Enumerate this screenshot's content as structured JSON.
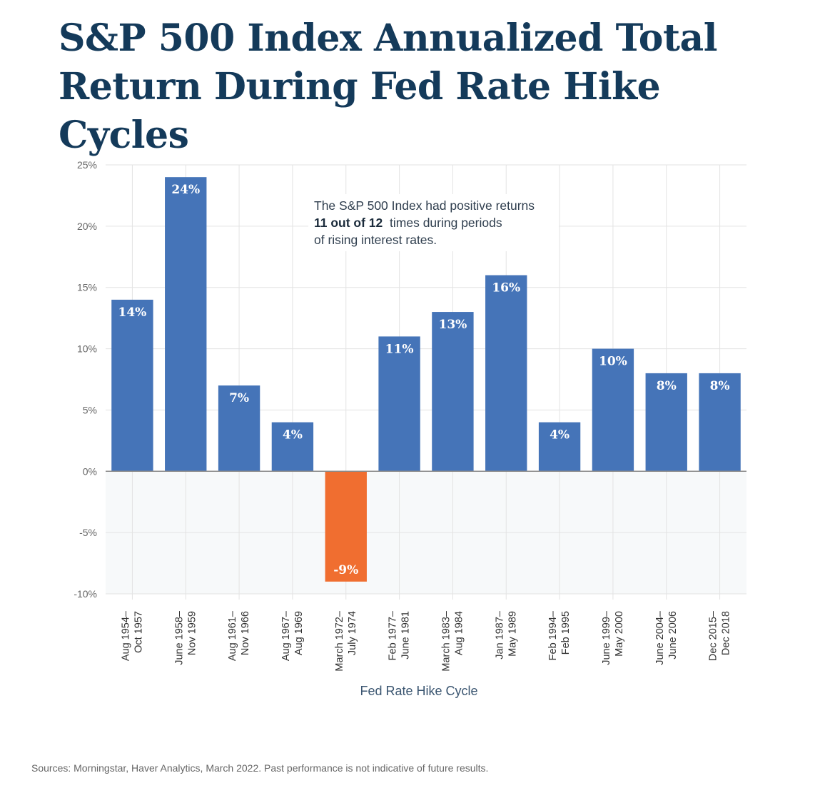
{
  "title_lines": [
    "S&P 500 Index Annualized Total",
    "Return During Fed Rate Hike Cycles"
  ],
  "annotation": {
    "line1": "The S&P 500 Index had positive returns",
    "line2_bold": "11 out of 12",
    "line2_rest": "times during periods",
    "line3": "of rising interest rates."
  },
  "source": "Sources: Morningstar, Haver Analytics, March 2022. Past performance is not indicative of future results.",
  "colors": {
    "positive": "#4574b8",
    "negative": "#f06e30",
    "title": "#143a5a",
    "negative_band": "#f7f9fa",
    "grid": "#e3e3e3"
  },
  "chart_data": {
    "type": "bar",
    "title": "S&P 500 Index Annualized Total Return During Fed Rate Hike Cycles",
    "xlabel": "Fed Rate Hike Cycle",
    "ylabel": "",
    "ylim": [
      -10,
      25
    ],
    "yticks": [
      25,
      20,
      15,
      10,
      5,
      0,
      -5,
      -10
    ],
    "ytick_labels": [
      "25%",
      "20%",
      "15%",
      "10%",
      "5%",
      "0%",
      "-5%",
      "-10%"
    ],
    "grid": true,
    "categories": [
      [
        "Aug 1954–",
        "Oct 1957"
      ],
      [
        "June 1958–",
        "Nov 1959"
      ],
      [
        "Aug 1961–",
        "Nov 1966"
      ],
      [
        "Aug 1967–",
        "Aug 1969"
      ],
      [
        "March 1972–",
        "July 1974"
      ],
      [
        "Feb 1977–",
        "June 1981"
      ],
      [
        "March 1983–",
        "Aug 1984"
      ],
      [
        "Jan 1987–",
        "May 1989"
      ],
      [
        "Feb 1994–",
        "Feb 1995"
      ],
      [
        "June 1999–",
        "May 2000"
      ],
      [
        "June 2004–",
        "June 2006"
      ],
      [
        "Dec 2015–",
        "Dec 2018"
      ]
    ],
    "values": [
      14,
      24,
      7,
      4,
      -9,
      11,
      13,
      16,
      4,
      10,
      8,
      8
    ],
    "value_labels": [
      "14%",
      "24%",
      "7%",
      "4%",
      "-9%",
      "11%",
      "13%",
      "16%",
      "4%",
      "10%",
      "8%",
      "8%"
    ]
  }
}
